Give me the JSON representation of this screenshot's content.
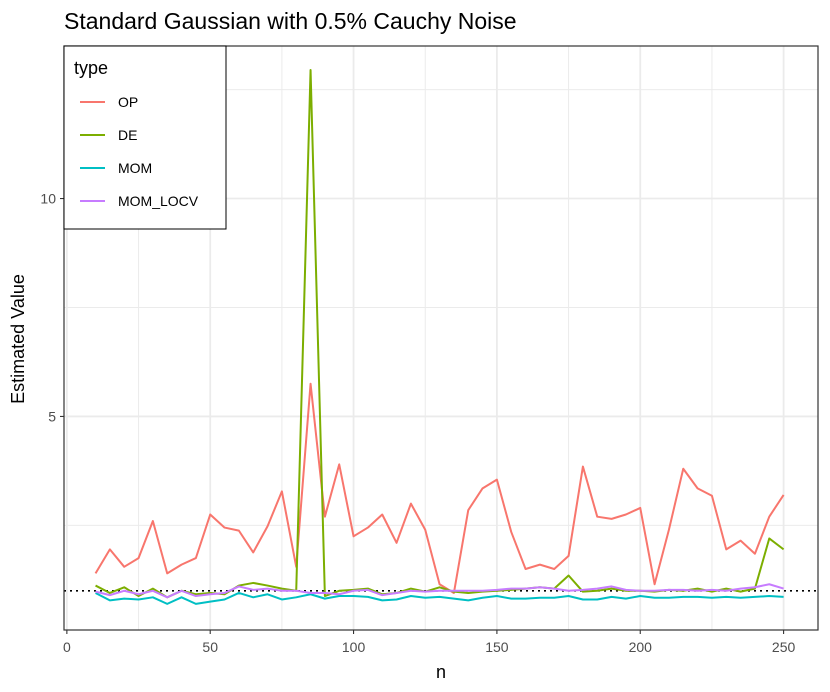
{
  "chart_data": {
    "type": "line",
    "title": "Standard Gaussian with 0.5% Cauchy Noise",
    "xlabel": "n",
    "ylabel": "Estimated Value",
    "xlim": [
      -1,
      262
    ],
    "ylim": [
      0.1,
      13.5
    ],
    "xticks": [
      0,
      50,
      100,
      150,
      200,
      250
    ],
    "yticks": [
      5,
      10
    ],
    "grid": true,
    "reference_line": {
      "y": 1,
      "style": "dotted"
    },
    "legend": {
      "title": "type",
      "position": "top-left"
    },
    "x": [
      10,
      15,
      20,
      25,
      30,
      35,
      40,
      45,
      50,
      55,
      60,
      65,
      70,
      75,
      80,
      85,
      90,
      95,
      100,
      105,
      110,
      115,
      120,
      125,
      130,
      135,
      140,
      145,
      150,
      155,
      160,
      165,
      170,
      175,
      180,
      185,
      190,
      195,
      200,
      205,
      210,
      215,
      220,
      225,
      230,
      235,
      240,
      245,
      250
    ],
    "series": [
      {
        "name": "OP",
        "color": "#F8766D",
        "values": [
          1.4,
          1.95,
          1.55,
          1.75,
          2.6,
          1.4,
          1.6,
          1.75,
          2.75,
          2.45,
          2.38,
          1.88,
          2.48,
          3.28,
          1.55,
          5.75,
          2.7,
          3.9,
          2.25,
          2.45,
          2.75,
          2.1,
          3.0,
          2.4,
          1.15,
          0.95,
          2.85,
          3.35,
          3.55,
          2.35,
          1.5,
          1.6,
          1.5,
          1.8,
          3.85,
          2.7,
          2.65,
          2.75,
          2.9,
          1.15,
          2.4,
          3.8,
          3.35,
          3.18,
          1.95,
          2.15,
          1.85,
          2.7,
          3.2
        ]
      },
      {
        "name": "DE",
        "color": "#7CAE00",
        "values": [
          1.12,
          0.95,
          1.08,
          0.88,
          1.05,
          0.85,
          1.0,
          0.92,
          0.95,
          0.92,
          1.12,
          1.18,
          1.12,
          1.05,
          1.0,
          12.95,
          0.88,
          1.0,
          1.02,
          1.05,
          0.92,
          0.95,
          1.05,
          0.98,
          1.08,
          0.98,
          0.95,
          0.98,
          1.0,
          1.02,
          1.05,
          1.08,
          1.05,
          1.35,
          0.98,
          1.0,
          1.05,
          1.0,
          1.0,
          0.98,
          1.02,
          1.0,
          1.05,
          0.98,
          1.05,
          0.98,
          1.05,
          2.2,
          1.95
        ]
      },
      {
        "name": "MOM",
        "color": "#00BFC4",
        "values": [
          0.95,
          0.78,
          0.82,
          0.8,
          0.85,
          0.7,
          0.85,
          0.7,
          0.75,
          0.8,
          0.95,
          0.85,
          0.92,
          0.8,
          0.85,
          0.92,
          0.82,
          0.88,
          0.88,
          0.86,
          0.78,
          0.8,
          0.88,
          0.84,
          0.86,
          0.82,
          0.78,
          0.84,
          0.88,
          0.82,
          0.82,
          0.84,
          0.84,
          0.88,
          0.8,
          0.8,
          0.86,
          0.82,
          0.88,
          0.84,
          0.84,
          0.86,
          0.86,
          0.84,
          0.86,
          0.84,
          0.86,
          0.88,
          0.86
        ]
      },
      {
        "name": "MOM_LOCV",
        "color": "#C77CFF",
        "values": [
          0.98,
          0.9,
          1.0,
          0.92,
          1.0,
          0.85,
          1.0,
          0.88,
          0.92,
          0.95,
          1.1,
          1.02,
          1.05,
          1.0,
          1.0,
          0.95,
          0.95,
          0.92,
          1.0,
          1.02,
          0.9,
          0.95,
          1.0,
          0.98,
          1.0,
          1.0,
          1.0,
          1.0,
          1.02,
          1.05,
          1.05,
          1.08,
          1.05,
          1.0,
          1.02,
          1.05,
          1.1,
          1.02,
          1.0,
          1.0,
          1.02,
          1.02,
          1.0,
          1.02,
          1.0,
          1.05,
          1.08,
          1.15,
          1.05
        ]
      }
    ]
  }
}
